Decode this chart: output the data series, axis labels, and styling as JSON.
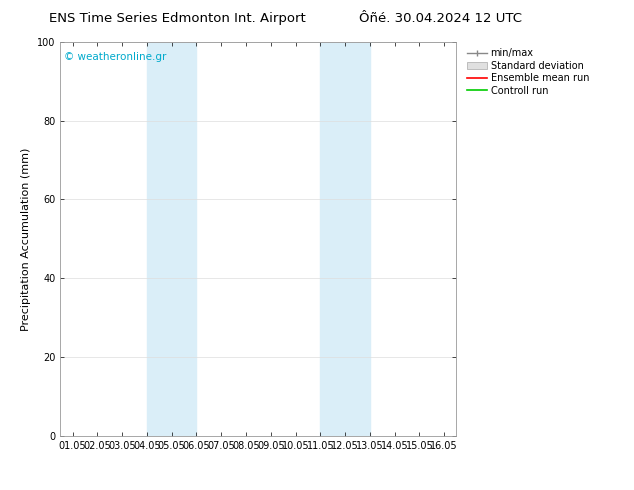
{
  "title_left": "ENS Time Series Edmonton Int. Airport",
  "title_right": "Ôñé. 30.04.2024 12 UTC",
  "ylabel": "Precipitation Accumulation (mm)",
  "watermark": "© weatheronline.gr",
  "watermark_color": "#00aacc",
  "ylim": [
    0,
    100
  ],
  "yticks": [
    0,
    20,
    40,
    60,
    80,
    100
  ],
  "xtick_labels": [
    "01.05",
    "02.05",
    "03.05",
    "04.05",
    "05.05",
    "06.05",
    "07.05",
    "08.05",
    "09.05",
    "10.05",
    "11.05",
    "12.05",
    "13.05",
    "14.05",
    "15.05",
    "16.05"
  ],
  "shade_bands": [
    {
      "xstart": 3,
      "xend": 5
    },
    {
      "xstart": 10,
      "xend": 12
    }
  ],
  "shade_color": "#daeef8",
  "legend_items": [
    {
      "label": "min/max",
      "color": "#888888",
      "type": "minmax"
    },
    {
      "label": "Standard deviation",
      "color": "#cccccc",
      "type": "stddev"
    },
    {
      "label": "Ensemble mean run",
      "color": "#ff0000",
      "type": "line"
    },
    {
      "label": "Controll run",
      "color": "#00cc00",
      "type": "line"
    }
  ],
  "background_color": "#ffffff",
  "grid_color": "#dddddd",
  "title_fontsize": 9.5,
  "tick_fontsize": 7,
  "ylabel_fontsize": 8,
  "legend_fontsize": 7,
  "watermark_fontsize": 7.5
}
